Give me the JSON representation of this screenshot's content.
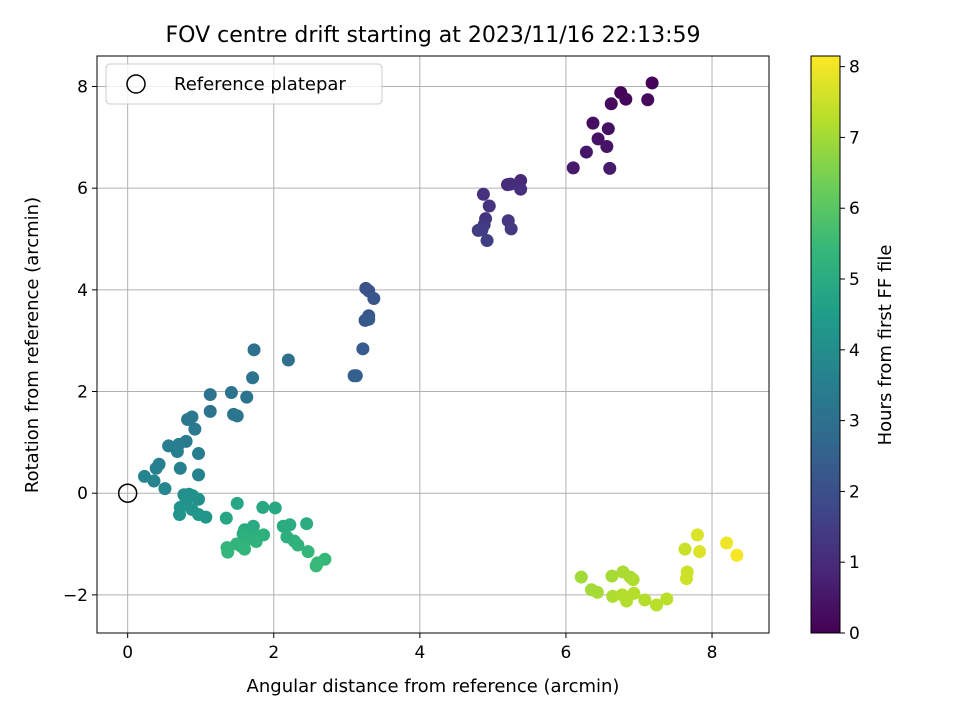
{
  "chart_data": {
    "type": "scatter",
    "title": "FOV centre drift starting at 2023/11/16 22:13:59",
    "xlabel": "Angular distance from reference (arcmin)",
    "ylabel": "Rotation from reference (arcmin)",
    "xlim": [
      -0.42,
      8.78
    ],
    "ylim": [
      -2.75,
      8.6
    ],
    "xticks": [
      0,
      2,
      4,
      6,
      8
    ],
    "yticks": [
      -2,
      0,
      2,
      4,
      6,
      8
    ],
    "grid": true,
    "legend": {
      "position": "top-left",
      "entries": [
        "Reference platepar"
      ]
    },
    "reference_point": {
      "x": 0,
      "y": 0
    },
    "colorbar": {
      "label": "Hours from first FF file",
      "colormap": "viridis",
      "range": [
        0,
        8.15
      ],
      "ticks": [
        0,
        1,
        2,
        3,
        4,
        5,
        6,
        7,
        8
      ]
    },
    "colors": [
      "#440154",
      "#482878",
      "#3e4989",
      "#31688e",
      "#26828e",
      "#1f9e89",
      "#35b779",
      "#6ece58",
      "#b5de2b",
      "#fde725"
    ],
    "points": [
      {
        "x": 7.18,
        "y": 8.07,
        "h": 0.05
      },
      {
        "x": 6.75,
        "y": 7.88,
        "h": 0.1
      },
      {
        "x": 6.82,
        "y": 7.75,
        "h": 0.15
      },
      {
        "x": 7.12,
        "y": 7.74,
        "h": 0.2
      },
      {
        "x": 6.62,
        "y": 7.66,
        "h": 0.25
      },
      {
        "x": 6.37,
        "y": 7.28,
        "h": 0.3
      },
      {
        "x": 6.58,
        "y": 7.17,
        "h": 0.35
      },
      {
        "x": 6.44,
        "y": 6.97,
        "h": 0.4
      },
      {
        "x": 6.56,
        "y": 6.82,
        "h": 0.45
      },
      {
        "x": 6.28,
        "y": 6.71,
        "h": 0.5
      },
      {
        "x": 6.1,
        "y": 6.4,
        "h": 0.55
      },
      {
        "x": 6.6,
        "y": 6.39,
        "h": 0.6
      },
      {
        "x": 5.38,
        "y": 6.15,
        "h": 0.95
      },
      {
        "x": 5.2,
        "y": 6.07,
        "h": 1.0
      },
      {
        "x": 5.24,
        "y": 6.08,
        "h": 1.05
      },
      {
        "x": 5.38,
        "y": 5.98,
        "h": 1.1
      },
      {
        "x": 4.87,
        "y": 5.88,
        "h": 1.15
      },
      {
        "x": 4.95,
        "y": 5.65,
        "h": 1.2
      },
      {
        "x": 4.9,
        "y": 5.4,
        "h": 1.25
      },
      {
        "x": 5.21,
        "y": 5.36,
        "h": 1.3
      },
      {
        "x": 4.88,
        "y": 5.28,
        "h": 1.35
      },
      {
        "x": 5.25,
        "y": 5.2,
        "h": 1.4
      },
      {
        "x": 4.8,
        "y": 5.17,
        "h": 1.45
      },
      {
        "x": 4.85,
        "y": 5.18,
        "h": 1.5
      },
      {
        "x": 4.92,
        "y": 4.97,
        "h": 1.55
      },
      {
        "x": 3.26,
        "y": 4.03,
        "h": 2.05
      },
      {
        "x": 3.3,
        "y": 3.98,
        "h": 2.1
      },
      {
        "x": 3.37,
        "y": 3.83,
        "h": 2.15
      },
      {
        "x": 3.3,
        "y": 3.49,
        "h": 2.2
      },
      {
        "x": 3.25,
        "y": 3.4,
        "h": 2.25
      },
      {
        "x": 3.3,
        "y": 3.42,
        "h": 2.3
      },
      {
        "x": 3.22,
        "y": 2.84,
        "h": 2.35
      },
      {
        "x": 3.1,
        "y": 2.31,
        "h": 2.4
      },
      {
        "x": 3.13,
        "y": 2.31,
        "h": 2.45
      },
      {
        "x": 1.73,
        "y": 2.82,
        "h": 3.0
      },
      {
        "x": 2.2,
        "y": 2.62,
        "h": 3.0
      },
      {
        "x": 1.71,
        "y": 2.27,
        "h": 3.05
      },
      {
        "x": 1.13,
        "y": 1.94,
        "h": 3.1
      },
      {
        "x": 1.42,
        "y": 1.98,
        "h": 3.1
      },
      {
        "x": 1.63,
        "y": 1.89,
        "h": 3.15
      },
      {
        "x": 1.13,
        "y": 1.61,
        "h": 3.15
      },
      {
        "x": 1.45,
        "y": 1.55,
        "h": 3.2
      },
      {
        "x": 1.5,
        "y": 1.52,
        "h": 3.2
      },
      {
        "x": 0.88,
        "y": 1.5,
        "h": 3.25
      },
      {
        "x": 0.82,
        "y": 1.45,
        "h": 3.25
      },
      {
        "x": 0.92,
        "y": 1.26,
        "h": 3.3
      },
      {
        "x": 0.8,
        "y": 1.02,
        "h": 3.4
      },
      {
        "x": 0.56,
        "y": 0.93,
        "h": 3.45
      },
      {
        "x": 0.7,
        "y": 0.96,
        "h": 3.45
      },
      {
        "x": 0.68,
        "y": 0.82,
        "h": 3.5
      },
      {
        "x": 0.97,
        "y": 0.78,
        "h": 3.5
      },
      {
        "x": 0.43,
        "y": 0.57,
        "h": 3.55
      },
      {
        "x": 0.39,
        "y": 0.49,
        "h": 3.6
      },
      {
        "x": 0.72,
        "y": 0.49,
        "h": 3.6
      },
      {
        "x": 0.97,
        "y": 0.36,
        "h": 3.65
      },
      {
        "x": 0.23,
        "y": 0.33,
        "h": 3.7
      },
      {
        "x": 0.36,
        "y": 0.24,
        "h": 3.7
      },
      {
        "x": 0.51,
        "y": 0.09,
        "h": 3.75
      },
      {
        "x": 0.77,
        "y": -0.03,
        "h": 4.05
      },
      {
        "x": 0.84,
        "y": -0.02,
        "h": 4.05
      },
      {
        "x": 0.89,
        "y": -0.05,
        "h": 4.1
      },
      {
        "x": 0.97,
        "y": -0.12,
        "h": 4.1
      },
      {
        "x": 0.8,
        "y": -0.16,
        "h": 4.15
      },
      {
        "x": 0.72,
        "y": -0.28,
        "h": 4.2
      },
      {
        "x": 0.88,
        "y": -0.32,
        "h": 4.2
      },
      {
        "x": 0.71,
        "y": -0.42,
        "h": 4.25
      },
      {
        "x": 0.97,
        "y": -0.42,
        "h": 4.3
      },
      {
        "x": 1.07,
        "y": -0.47,
        "h": 4.3
      },
      {
        "x": 1.35,
        "y": -0.49,
        "h": 4.8
      },
      {
        "x": 1.5,
        "y": -0.2,
        "h": 4.8
      },
      {
        "x": 1.85,
        "y": -0.28,
        "h": 4.85
      },
      {
        "x": 2.02,
        "y": -0.29,
        "h": 4.9
      },
      {
        "x": 1.72,
        "y": -0.65,
        "h": 4.95
      },
      {
        "x": 1.6,
        "y": -0.72,
        "h": 5.0
      },
      {
        "x": 2.13,
        "y": -0.65,
        "h": 5.0
      },
      {
        "x": 2.22,
        "y": -0.62,
        "h": 5.05
      },
      {
        "x": 2.45,
        "y": -0.6,
        "h": 5.05
      },
      {
        "x": 1.58,
        "y": -0.8,
        "h": 5.1
      },
      {
        "x": 1.75,
        "y": -0.82,
        "h": 5.1
      },
      {
        "x": 1.86,
        "y": -0.82,
        "h": 5.15
      },
      {
        "x": 2.18,
        "y": -0.86,
        "h": 5.15
      },
      {
        "x": 2.28,
        "y": -0.94,
        "h": 5.2
      },
      {
        "x": 1.63,
        "y": -0.92,
        "h": 5.2
      },
      {
        "x": 1.76,
        "y": -0.95,
        "h": 5.25
      },
      {
        "x": 2.33,
        "y": -1.02,
        "h": 5.25
      },
      {
        "x": 1.49,
        "y": -1.0,
        "h": 5.3
      },
      {
        "x": 1.56,
        "y": -1.05,
        "h": 5.3
      },
      {
        "x": 1.36,
        "y": -1.07,
        "h": 5.35
      },
      {
        "x": 1.6,
        "y": -1.1,
        "h": 5.35
      },
      {
        "x": 1.37,
        "y": -1.16,
        "h": 5.4
      },
      {
        "x": 2.47,
        "y": -1.15,
        "h": 5.4
      },
      {
        "x": 2.7,
        "y": -1.3,
        "h": 5.45
      },
      {
        "x": 2.6,
        "y": -1.37,
        "h": 5.45
      },
      {
        "x": 2.58,
        "y": -1.43,
        "h": 5.5
      },
      {
        "x": 6.21,
        "y": -1.65,
        "h": 7.0
      },
      {
        "x": 6.35,
        "y": -1.9,
        "h": 7.0
      },
      {
        "x": 6.43,
        "y": -1.95,
        "h": 7.05
      },
      {
        "x": 6.63,
        "y": -1.63,
        "h": 7.05
      },
      {
        "x": 6.78,
        "y": -1.55,
        "h": 7.1
      },
      {
        "x": 6.88,
        "y": -1.65,
        "h": 7.1
      },
      {
        "x": 6.92,
        "y": -1.7,
        "h": 7.15
      },
      {
        "x": 6.64,
        "y": -2.03,
        "h": 7.15
      },
      {
        "x": 6.77,
        "y": -2.0,
        "h": 7.2
      },
      {
        "x": 6.83,
        "y": -2.12,
        "h": 7.2
      },
      {
        "x": 6.93,
        "y": -1.97,
        "h": 7.25
      },
      {
        "x": 7.08,
        "y": -2.1,
        "h": 7.25
      },
      {
        "x": 7.24,
        "y": -2.2,
        "h": 7.3
      },
      {
        "x": 7.38,
        "y": -2.08,
        "h": 7.3
      },
      {
        "x": 7.63,
        "y": -1.1,
        "h": 7.5
      },
      {
        "x": 7.66,
        "y": -1.55,
        "h": 7.55
      },
      {
        "x": 7.65,
        "y": -1.68,
        "h": 7.55
      },
      {
        "x": 7.8,
        "y": -0.82,
        "h": 7.7
      },
      {
        "x": 7.83,
        "y": -1.15,
        "h": 7.75
      },
      {
        "x": 8.2,
        "y": -0.98,
        "h": 7.95
      },
      {
        "x": 8.34,
        "y": -1.22,
        "h": 8.05
      }
    ]
  }
}
